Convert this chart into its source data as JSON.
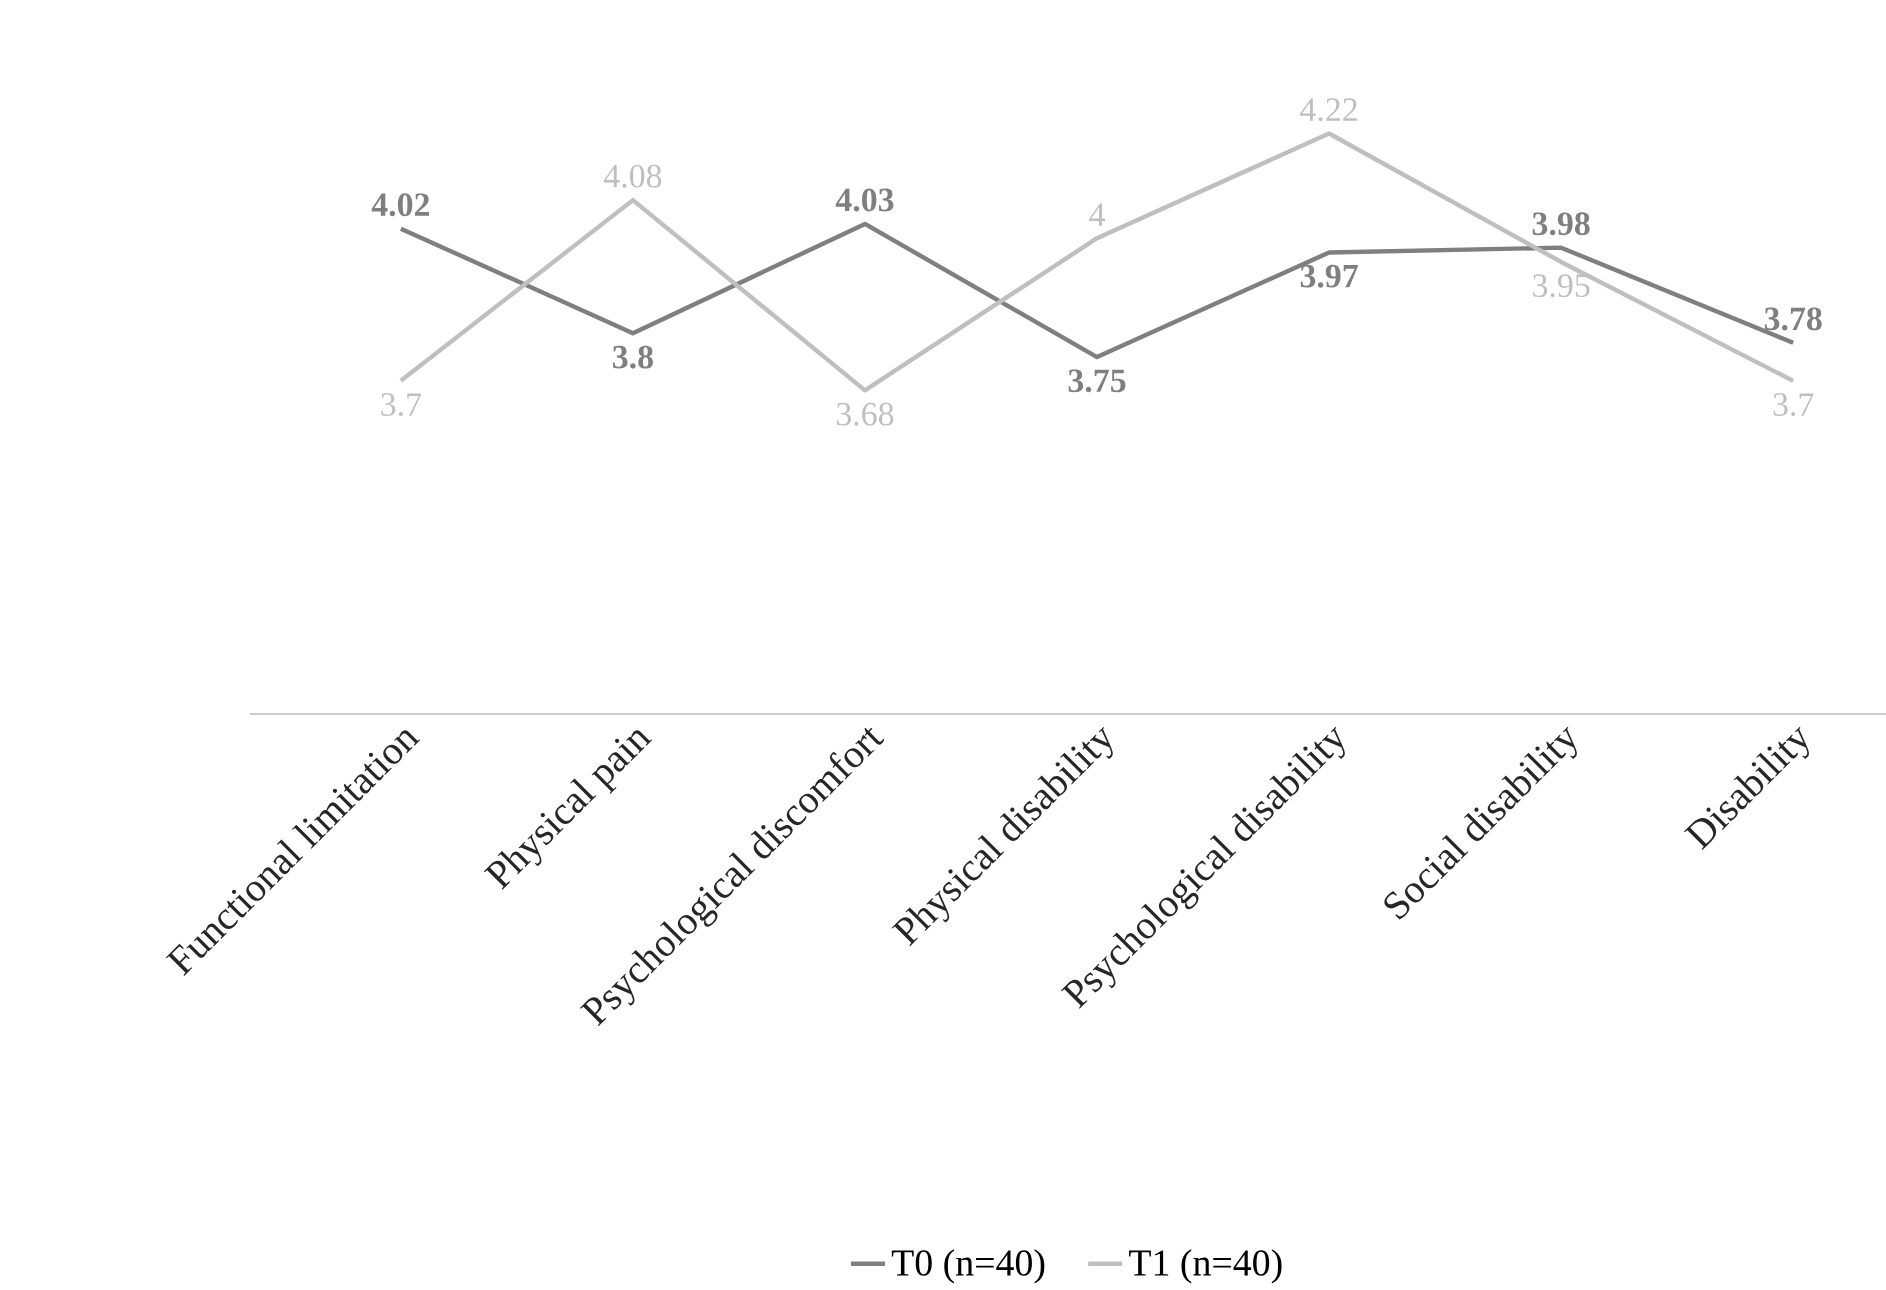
{
  "chart_data": {
    "type": "line",
    "categories": [
      "Functional limitation",
      "Physical pain",
      "Psychological discomfort",
      "Physical disability",
      "Psychological disability",
      "Social disability",
      "Disability"
    ],
    "series": [
      {
        "name": "T0 (n=40)",
        "color": "#7f7f7f",
        "values": [
          4.02,
          3.8,
          4.03,
          3.75,
          3.97,
          3.98,
          3.78
        ]
      },
      {
        "name": "T1 (n=40)",
        "color": "#bfbfbf",
        "values": [
          3.7,
          4.08,
          3.68,
          4,
          4.22,
          3.95,
          3.7
        ]
      }
    ],
    "data_labels": true,
    "legend": "bottom",
    "tick_labels": "x"
  }
}
